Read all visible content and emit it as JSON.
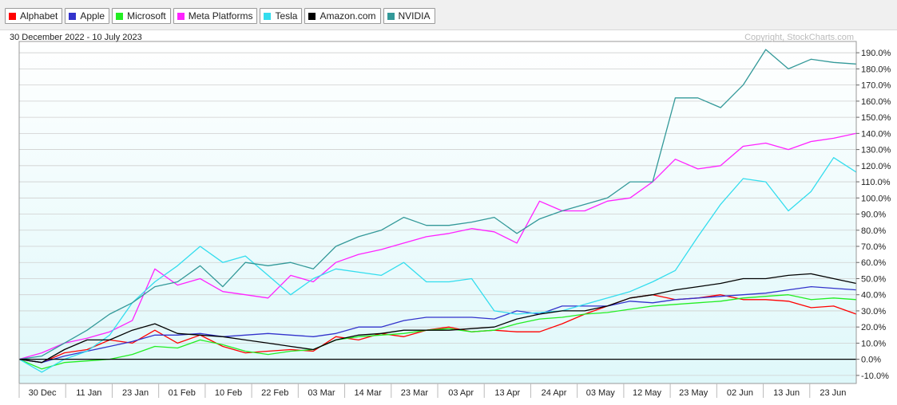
{
  "legend": {
    "items": [
      {
        "label": "Alphabet",
        "color": "#ff0000"
      },
      {
        "label": "Apple",
        "color": "#3333cc"
      },
      {
        "label": "Microsoft",
        "color": "#22ee22"
      },
      {
        "label": "Meta Platforms",
        "color": "#ff22ff"
      },
      {
        "label": "Tesla",
        "color": "#33ddee"
      },
      {
        "label": "Amazon.com",
        "color": "#000000"
      },
      {
        "label": "NVIDIA",
        "color": "#339999"
      }
    ]
  },
  "chart_data": {
    "type": "line",
    "date_range": "30 December 2022 - 10 July 2023",
    "copyright": "Copyright, StockCharts.com",
    "ylim": [
      -15,
      197
    ],
    "grid": true,
    "x_tick_labels": [
      "30  Dec",
      "11  Jan",
      "23  Jan",
      "01  Feb",
      "10  Feb",
      "22  Feb",
      "03  Mar",
      "14  Mar",
      "23  Mar",
      "03  Apr",
      "13  Apr",
      "24  Apr",
      "03  May",
      "12  May",
      "23  May",
      "02  Jun",
      "13  Jun",
      "23  Jun"
    ],
    "y_ticks": [
      -10,
      0,
      10,
      20,
      30,
      40,
      50,
      60,
      70,
      80,
      90,
      100,
      110,
      120,
      130,
      140,
      150,
      160,
      170,
      180,
      190
    ],
    "y_tick_labels": [
      "-10.0%",
      "0.0%",
      "10.0%",
      "20.0%",
      "30.0%",
      "40.0%",
      "50.0%",
      "60.0%",
      "70.0%",
      "80.0%",
      "90.0%",
      "100.0%",
      "110.0%",
      "120.0%",
      "130.0%",
      "140.0%",
      "150.0%",
      "160.0%",
      "170.0%",
      "180.0%",
      "190.0%"
    ],
    "x": [
      "30 Dec",
      "05 Jan",
      "11 Jan",
      "17 Jan",
      "23 Jan",
      "27 Jan",
      "01 Feb",
      "06 Feb",
      "10 Feb",
      "16 Feb",
      "22 Feb",
      "28 Feb",
      "03 Mar",
      "09 Mar",
      "14 Mar",
      "20 Mar",
      "23 Mar",
      "29 Mar",
      "03 Apr",
      "06 Apr",
      "13 Apr",
      "18 Apr",
      "24 Apr",
      "28 Apr",
      "03 May",
      "08 May",
      "12 May",
      "17 May",
      "23 May",
      "26 May",
      "02 Jun",
      "07 Jun",
      "13 Jun",
      "16 Jun",
      "23 Jun",
      "28 Jun",
      "03 Jul",
      "10 Jul"
    ],
    "series": [
      {
        "name": "Alphabet",
        "color": "#ff0000",
        "values": [
          0,
          -2,
          4,
          6,
          12,
          10,
          18,
          10,
          15,
          8,
          4,
          5,
          6,
          5,
          14,
          12,
          16,
          14,
          18,
          20,
          17,
          18,
          17,
          17,
          22,
          28,
          33,
          38,
          40,
          37,
          38,
          40,
          37,
          37,
          36,
          32,
          33,
          28
        ]
      },
      {
        "name": "Apple",
        "color": "#3333cc",
        "values": [
          0,
          -2,
          2,
          5,
          8,
          11,
          15,
          15,
          16,
          14,
          15,
          16,
          15,
          14,
          16,
          20,
          20,
          24,
          26,
          26,
          26,
          25,
          30,
          28,
          33,
          33,
          33,
          36,
          35,
          37,
          38,
          39,
          40,
          41,
          43,
          45,
          44,
          43
        ]
      },
      {
        "name": "Microsoft",
        "color": "#22ee22",
        "values": [
          0,
          -6,
          -2,
          -1,
          0,
          3,
          8,
          7,
          12,
          9,
          5,
          3,
          5,
          6,
          12,
          14,
          15,
          16,
          18,
          19,
          17,
          18,
          22,
          25,
          26,
          28,
          29,
          31,
          33,
          34,
          35,
          36,
          38,
          39,
          40,
          37,
          38,
          37
        ]
      },
      {
        "name": "Meta Platforms",
        "color": "#ff22ff",
        "values": [
          0,
          4,
          10,
          13,
          17,
          24,
          56,
          46,
          50,
          42,
          40,
          38,
          52,
          48,
          60,
          65,
          68,
          72,
          76,
          78,
          81,
          79,
          72,
          98,
          92,
          92,
          98,
          100,
          110,
          124,
          118,
          120,
          132,
          134,
          130,
          135,
          137,
          140
        ]
      },
      {
        "name": "Tesla",
        "color": "#33ddee",
        "values": [
          0,
          -8,
          0,
          5,
          15,
          35,
          48,
          58,
          70,
          60,
          64,
          52,
          40,
          50,
          56,
          54,
          52,
          60,
          48,
          48,
          50,
          30,
          28,
          29,
          30,
          34,
          38,
          42,
          48,
          55,
          76,
          96,
          112,
          110,
          92,
          104,
          125,
          116
        ]
      },
      {
        "name": "Amazon.com",
        "color": "#000000",
        "values": [
          0,
          -2,
          6,
          12,
          12,
          18,
          22,
          16,
          15,
          14,
          12,
          10,
          8,
          6,
          12,
          15,
          16,
          18,
          18,
          18,
          19,
          20,
          25,
          28,
          30,
          30,
          33,
          38,
          40,
          43,
          45,
          47,
          50,
          50,
          52,
          53,
          50,
          47
        ]
      },
      {
        "name": "NVIDIA",
        "color": "#339999",
        "values": [
          0,
          2,
          10,
          18,
          28,
          35,
          45,
          48,
          58,
          45,
          60,
          58,
          60,
          56,
          70,
          76,
          80,
          88,
          83,
          83,
          85,
          88,
          78,
          87,
          92,
          96,
          100,
          110,
          110,
          162,
          162,
          156,
          170,
          192,
          180,
          186,
          184,
          183
        ]
      }
    ]
  }
}
